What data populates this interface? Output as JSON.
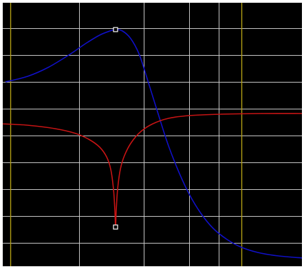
{
  "plot": {
    "background_color": "#000000",
    "frame_color": "#ffffff",
    "grid_color": "#c8c8c8",
    "marker_line_color": "#b4a014",
    "curves": [
      {
        "id": "magnitude",
        "color": "#1010c8"
      },
      {
        "id": "notch",
        "color": "#c81414"
      }
    ],
    "markers": [
      {
        "id": "peak-marker",
        "color": "#ffffff"
      },
      {
        "id": "notch-marker",
        "color": "#ffffff"
      }
    ]
  }
}
